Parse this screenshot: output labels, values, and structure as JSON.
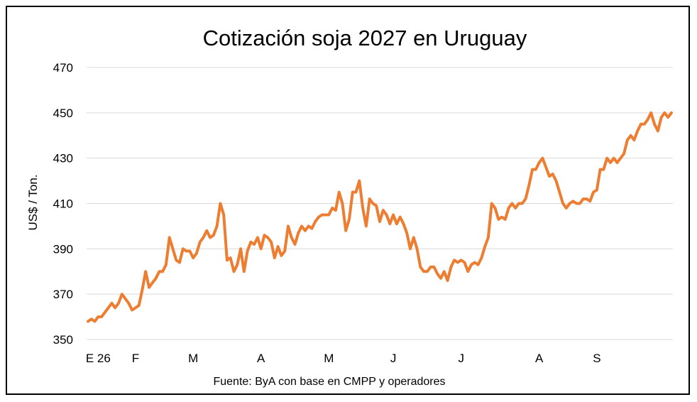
{
  "chart_data": {
    "type": "line",
    "title": "Cotización soja 2027 en Uruguay",
    "ylabel": "US$ / Ton.",
    "xlabel": "",
    "source": "Fuente: ByA con base en CMPP y operadores",
    "ylim": [
      350,
      470
    ],
    "yticks": [
      350,
      370,
      390,
      410,
      430,
      450,
      470
    ],
    "grid": "horizontal",
    "legend": "none",
    "xtick_labels": [
      {
        "label": "E 26",
        "index": 3
      },
      {
        "label": "F",
        "index": 14
      },
      {
        "label": "M",
        "index": 31
      },
      {
        "label": "A",
        "index": 51
      },
      {
        "label": "M",
        "index": 71
      },
      {
        "label": "J",
        "index": 90
      },
      {
        "label": "J",
        "index": 110
      },
      {
        "label": "A",
        "index": 133
      },
      {
        "label": "S",
        "index": 150
      }
    ],
    "series": [
      {
        "color": "#ED7D31",
        "values": [
          358,
          359,
          358,
          360,
          360,
          362,
          364,
          366,
          364,
          366,
          370,
          368,
          366,
          363,
          364,
          365,
          372,
          380,
          373,
          375,
          377,
          380,
          380,
          383,
          395,
          390,
          385,
          384,
          390,
          389,
          389,
          386,
          388,
          393,
          395,
          398,
          395,
          396,
          400,
          410,
          405,
          385,
          386,
          380,
          383,
          390,
          380,
          389,
          393,
          392,
          395,
          390,
          396,
          395,
          393,
          386,
          391,
          387,
          389,
          400,
          395,
          392,
          397,
          400,
          398,
          400,
          399,
          402,
          404,
          405,
          405,
          405,
          408,
          407,
          415,
          410,
          398,
          403,
          415,
          415,
          420,
          408,
          400,
          412,
          410,
          409,
          402,
          407,
          405,
          401,
          405,
          401,
          404,
          401,
          397,
          390,
          395,
          390,
          382,
          380,
          380,
          382,
          382,
          379,
          377,
          380,
          376,
          382,
          385,
          384,
          385,
          384,
          380,
          383,
          384,
          383,
          386,
          391,
          395,
          410,
          408,
          403,
          404,
          403,
          408,
          410,
          408,
          410,
          410,
          412,
          418,
          425,
          425,
          428,
          430,
          426,
          422,
          423,
          420,
          415,
          410,
          408,
          410,
          411,
          410,
          410,
          412,
          412,
          411,
          415,
          416,
          425,
          425,
          430,
          428,
          430,
          428,
          430,
          432,
          438,
          440,
          438,
          442,
          445,
          445,
          447,
          450,
          445,
          442,
          448,
          450,
          448,
          450
        ]
      }
    ]
  }
}
